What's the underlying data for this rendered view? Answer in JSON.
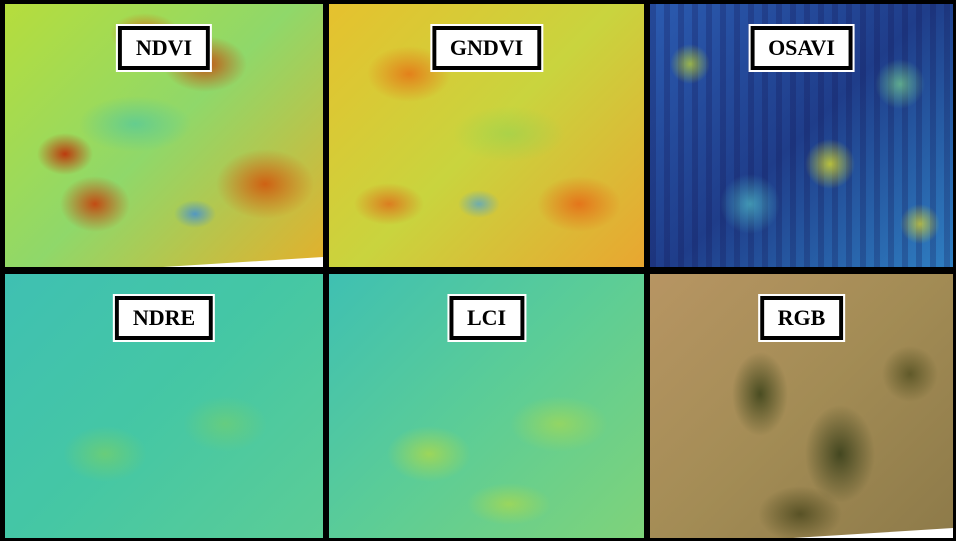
{
  "panels": [
    {
      "label": "NDVI"
    },
    {
      "label": "GNDVI"
    },
    {
      "label": "OSAVI"
    },
    {
      "label": "NDRE"
    },
    {
      "label": "LCI"
    },
    {
      "label": "RGB"
    }
  ]
}
